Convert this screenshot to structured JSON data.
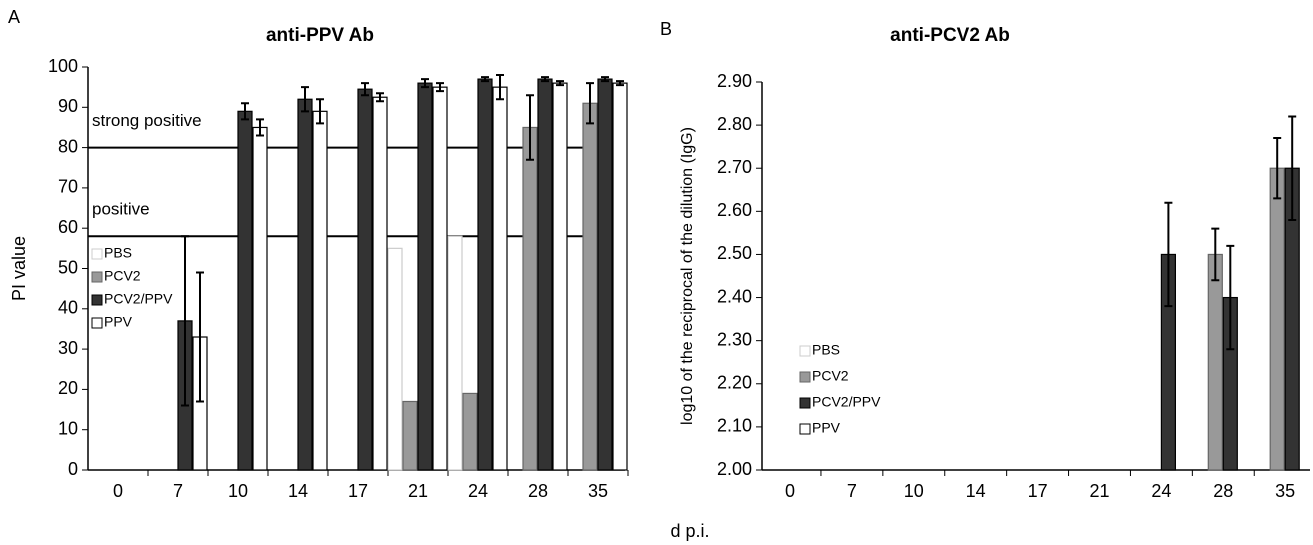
{
  "chart_data": [
    {
      "type": "bar",
      "panel": "A",
      "title": "anti-PPV Ab",
      "ylabel": "PI value",
      "categories": [
        "0",
        "7",
        "10",
        "14",
        "17",
        "21",
        "24",
        "28",
        "35"
      ],
      "ylim": [
        0,
        100
      ],
      "yticks": [
        0,
        10,
        20,
        30,
        40,
        50,
        60,
        70,
        80,
        90,
        100
      ],
      "hlines": [
        {
          "value": 80,
          "label": "strong positive"
        },
        {
          "value": 58,
          "label": "positive"
        }
      ],
      "series": [
        {
          "name": "PBS",
          "color": "#ffffff",
          "values": [
            null,
            null,
            null,
            null,
            null,
            55,
            58,
            null,
            null
          ],
          "errors": [
            null,
            null,
            null,
            null,
            null,
            null,
            null,
            null,
            null
          ]
        },
        {
          "name": "PCV2",
          "color": "#999999",
          "values": [
            null,
            null,
            null,
            null,
            null,
            17,
            19,
            85,
            91
          ],
          "errors": [
            null,
            null,
            null,
            null,
            null,
            null,
            null,
            8,
            5
          ]
        },
        {
          "name": "PCV2/PPV",
          "color": "#333333",
          "values": [
            null,
            37,
            89,
            92,
            94.5,
            96,
            97,
            97,
            97
          ],
          "errors": [
            null,
            21,
            2,
            3,
            1.5,
            1,
            0.5,
            0.5,
            0.5
          ]
        },
        {
          "name": "PPV",
          "color": "#ffffff",
          "values": [
            null,
            33,
            85,
            89,
            92.5,
            95,
            95,
            96,
            96
          ],
          "errors": [
            null,
            16,
            2,
            3,
            1,
            1,
            3,
            0.5,
            0.5
          ]
        }
      ]
    },
    {
      "type": "bar",
      "panel": "B",
      "title": "anti-PCV2 Ab",
      "ylabel": "log10 of the reciprocal of the dilution (IgG)",
      "xlabel": "d p.i.",
      "categories": [
        "0",
        "7",
        "10",
        "14",
        "17",
        "21",
        "24",
        "28",
        "35"
      ],
      "ylim": [
        2,
        2.9
      ],
      "yticks": [
        {
          "value": 2,
          "label": "2.00"
        },
        {
          "value": 2.1,
          "label": "2.10"
        },
        {
          "value": 2.2,
          "label": "2.20"
        },
        {
          "value": 2.3,
          "label": "2.30"
        },
        {
          "value": 2.4,
          "label": "2.40"
        },
        {
          "value": 2.5,
          "label": "2.50"
        },
        {
          "value": 2.6,
          "label": "2.60"
        },
        {
          "value": 2.7,
          "label": "2.70"
        },
        {
          "value": 2.8,
          "label": "2.80"
        },
        {
          "value": 2.9,
          "label": "2.90"
        }
      ],
      "series": [
        {
          "name": "PBS",
          "color": "#ffffff",
          "values": [
            null,
            null,
            null,
            null,
            null,
            null,
            null,
            null,
            null
          ],
          "errors": [
            null,
            null,
            null,
            null,
            null,
            null,
            null,
            null,
            null
          ]
        },
        {
          "name": "PCV2",
          "color": "#999999",
          "values": [
            null,
            null,
            null,
            null,
            null,
            null,
            null,
            2.5,
            2.7
          ],
          "errors": [
            null,
            null,
            null,
            null,
            null,
            null,
            null,
            0.06,
            0.07
          ]
        },
        {
          "name": "PCV2/PPV",
          "color": "#333333",
          "values": [
            null,
            null,
            null,
            null,
            null,
            null,
            2.5,
            2.4,
            2.7
          ],
          "errors": [
            null,
            null,
            null,
            null,
            null,
            null,
            0.12,
            0.12,
            0.12
          ]
        },
        {
          "name": "PPV",
          "color": "#ffffff",
          "values": [
            null,
            null,
            null,
            null,
            null,
            null,
            null,
            null,
            null
          ],
          "errors": [
            null,
            null,
            null,
            null,
            null,
            null,
            null,
            null,
            null
          ]
        }
      ]
    }
  ]
}
